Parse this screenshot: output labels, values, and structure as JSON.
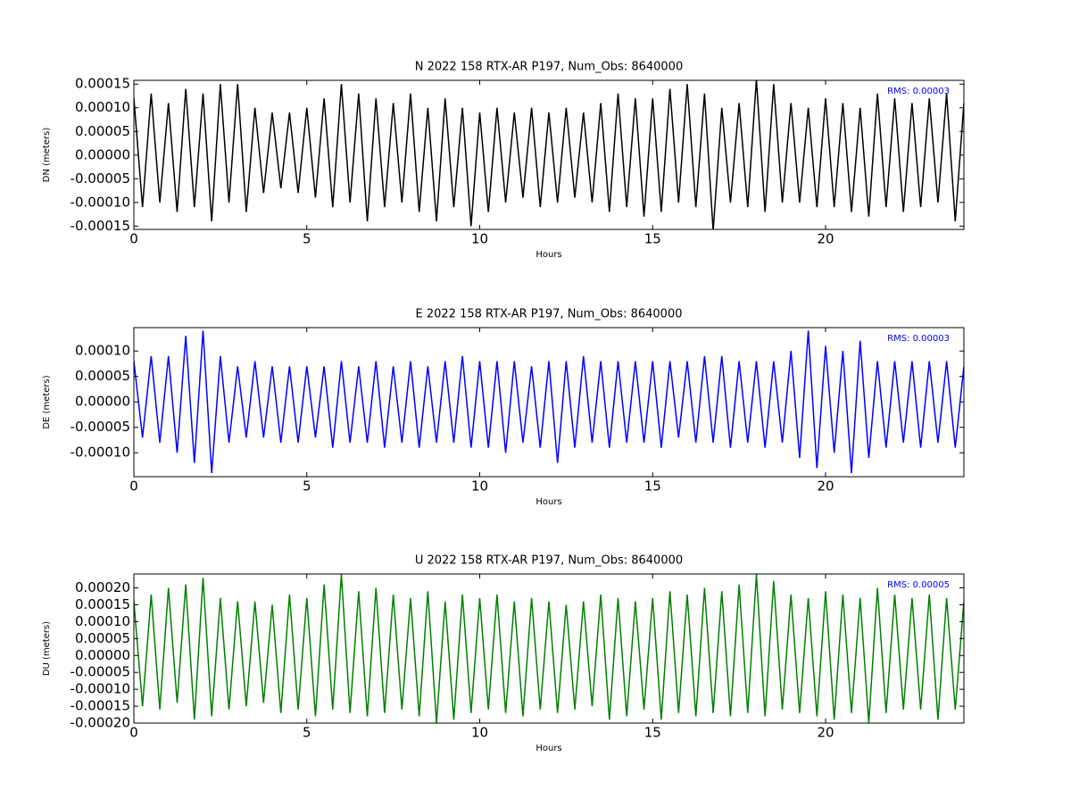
{
  "chart_data": [
    {
      "type": "line",
      "title": "N 2022 158 RTX-AR  P197, Num_Obs: 8640000",
      "ylabel": "DN (meters)",
      "xlabel": "Hours",
      "annotation": "RMS:  0.00003",
      "annotation_color": "#0000ff",
      "color": "#000000",
      "xlim": [
        0,
        24
      ],
      "xticks": [
        0,
        5,
        10,
        15,
        20
      ],
      "ylim": [
        -0.000157,
        0.000158
      ],
      "yticks": [
        {
          "value": -0.00015,
          "label": "-0.00015"
        },
        {
          "value": -0.0001,
          "label": "-0.00010"
        },
        {
          "value": -5e-05,
          "label": "-0.00005"
        },
        {
          "value": 0,
          "label": "0.00000"
        },
        {
          "value": 5e-05,
          "label": "0.00005"
        },
        {
          "value": 0.0001,
          "label": "0.00010"
        },
        {
          "value": 0.00015,
          "label": "0.00015"
        }
      ],
      "x": [
        0,
        0.25,
        0.5,
        0.75,
        1,
        1.25,
        1.5,
        1.75,
        2,
        2.25,
        2.5,
        2.75,
        3,
        3.25,
        3.5,
        3.75,
        4,
        4.25,
        4.5,
        4.75,
        5,
        5.25,
        5.5,
        5.75,
        6,
        6.25,
        6.5,
        6.75,
        7,
        7.25,
        7.5,
        7.75,
        8,
        8.25,
        8.5,
        8.75,
        9,
        9.25,
        9.5,
        9.75,
        10,
        10.25,
        10.5,
        10.75,
        11,
        11.25,
        11.5,
        11.75,
        12,
        12.25,
        12.5,
        12.75,
        13,
        13.25,
        13.5,
        13.75,
        14,
        14.25,
        14.5,
        14.75,
        15,
        15.25,
        15.5,
        15.75,
        16,
        16.25,
        16.5,
        16.75,
        17,
        17.25,
        17.5,
        17.75,
        18,
        18.25,
        18.5,
        18.75,
        19,
        19.25,
        19.5,
        19.75,
        20,
        20.25,
        20.5,
        20.75,
        21,
        21.25,
        21.5,
        21.75,
        22,
        22.25,
        22.5,
        22.75,
        23,
        23.25,
        23.5,
        23.75,
        24
      ],
      "values": [
        0.00012,
        -0.00011,
        0.00013,
        -0.0001,
        0.00011,
        -0.00012,
        0.00014,
        -0.00011,
        0.00013,
        -0.00014,
        0.00015,
        -0.0001,
        0.00015,
        -0.00012,
        0.0001,
        -8e-05,
        9e-05,
        -7e-05,
        9e-05,
        -8e-05,
        0.0001,
        -9e-05,
        0.00012,
        -0.00011,
        0.00015,
        -0.0001,
        0.00013,
        -0.00014,
        0.00012,
        -0.00011,
        0.00011,
        -0.0001,
        0.00013,
        -0.00012,
        0.0001,
        -0.00014,
        0.00012,
        -0.00011,
        0.0001,
        -0.00015,
        9e-05,
        -0.00012,
        0.0001,
        -0.0001,
        9e-05,
        -9e-05,
        0.0001,
        -0.00011,
        9e-05,
        -0.0001,
        0.0001,
        -9e-05,
        9e-05,
        -0.0001,
        0.00011,
        -0.00012,
        0.00013,
        -0.00011,
        0.00012,
        -0.00013,
        0.00012,
        -0.00012,
        0.00014,
        -0.0001,
        0.00015,
        -0.00011,
        0.00013,
        -0.00016,
        0.0001,
        -0.0001,
        0.00011,
        -0.00011,
        0.00016,
        -0.00012,
        0.00015,
        -0.0001,
        0.00011,
        -0.0001,
        0.0001,
        -0.00011,
        0.00012,
        -0.00011,
        0.00011,
        -0.00012,
        0.0001,
        -0.00013,
        0.00013,
        -0.00011,
        0.00012,
        -0.00012,
        0.00011,
        -0.00011,
        0.00012,
        -0.0001,
        0.00013,
        -0.00014,
        0.00011
      ]
    },
    {
      "type": "line",
      "title": "E 2022 158 RTX-AR  P197, Num_Obs: 8640000",
      "ylabel": "DE (meters)",
      "xlabel": "Hours",
      "annotation": "RMS:  0.00003",
      "annotation_color": "#0000ff",
      "color": "#0000ff",
      "xlim": [
        0,
        24
      ],
      "xticks": [
        0,
        5,
        10,
        15,
        20
      ],
      "ylim": [
        -0.000147,
        0.000146
      ],
      "yticks": [
        {
          "value": -0.0001,
          "label": "-0.00010"
        },
        {
          "value": -5e-05,
          "label": "-0.00005"
        },
        {
          "value": 0,
          "label": "0.00000"
        },
        {
          "value": 5e-05,
          "label": "0.00005"
        },
        {
          "value": 0.0001,
          "label": "0.00010"
        }
      ],
      "x": [
        0,
        0.25,
        0.5,
        0.75,
        1,
        1.25,
        1.5,
        1.75,
        2,
        2.25,
        2.5,
        2.75,
        3,
        3.25,
        3.5,
        3.75,
        4,
        4.25,
        4.5,
        4.75,
        5,
        5.25,
        5.5,
        5.75,
        6,
        6.25,
        6.5,
        6.75,
        7,
        7.25,
        7.5,
        7.75,
        8,
        8.25,
        8.5,
        8.75,
        9,
        9.25,
        9.5,
        9.75,
        10,
        10.25,
        10.5,
        10.75,
        11,
        11.25,
        11.5,
        11.75,
        12,
        12.25,
        12.5,
        12.75,
        13,
        13.25,
        13.5,
        13.75,
        14,
        14.25,
        14.5,
        14.75,
        15,
        15.25,
        15.5,
        15.75,
        16,
        16.25,
        16.5,
        16.75,
        17,
        17.25,
        17.5,
        17.75,
        18,
        18.25,
        18.5,
        18.75,
        19,
        19.25,
        19.5,
        19.75,
        20,
        20.25,
        20.5,
        20.75,
        21,
        21.25,
        21.5,
        21.75,
        22,
        22.25,
        22.5,
        22.75,
        23,
        23.25,
        23.5,
        23.75,
        24
      ],
      "values": [
        8e-05,
        -7e-05,
        9e-05,
        -8e-05,
        9e-05,
        -0.0001,
        0.00013,
        -0.00012,
        0.00014,
        -0.00014,
        9e-05,
        -8e-05,
        7e-05,
        -7e-05,
        8e-05,
        -7e-05,
        7e-05,
        -8e-05,
        7e-05,
        -8e-05,
        7e-05,
        -7e-05,
        7e-05,
        -9e-05,
        8e-05,
        -8e-05,
        7e-05,
        -8e-05,
        8e-05,
        -9e-05,
        7e-05,
        -8e-05,
        8e-05,
        -9e-05,
        7e-05,
        -8e-05,
        8e-05,
        -8e-05,
        9e-05,
        -9e-05,
        8e-05,
        -9e-05,
        8e-05,
        -0.0001,
        8e-05,
        -8e-05,
        7e-05,
        -9e-05,
        8e-05,
        -0.00012,
        8e-05,
        -9e-05,
        9e-05,
        -8e-05,
        8e-05,
        -9e-05,
        8e-05,
        -8e-05,
        8e-05,
        -8e-05,
        8e-05,
        -9e-05,
        8e-05,
        -7e-05,
        8e-05,
        -8e-05,
        9e-05,
        -8e-05,
        9e-05,
        -9e-05,
        8e-05,
        -8e-05,
        8e-05,
        -9e-05,
        8e-05,
        -8e-05,
        0.0001,
        -0.00011,
        0.00014,
        -0.00013,
        0.00011,
        -0.0001,
        0.0001,
        -0.00014,
        0.00012,
        -0.00011,
        8e-05,
        -9e-05,
        8e-05,
        -8e-05,
        8e-05,
        -9e-05,
        8e-05,
        -8e-05,
        8e-05,
        -9e-05,
        7e-05
      ]
    },
    {
      "type": "line",
      "title": "U 2022 158 RTX-AR  P197, Num_Obs: 8640000",
      "ylabel": "DU (meters)",
      "xlabel": "Hours",
      "annotation": "RMS:  0.00005",
      "annotation_color": "#0000ff",
      "color": "#008000",
      "xlim": [
        0,
        24
      ],
      "xticks": [
        0,
        5,
        10,
        15,
        20
      ],
      "ylim": [
        -0.0002,
        0.000241
      ],
      "yticks": [
        {
          "value": -0.0002,
          "label": "-0.00020"
        },
        {
          "value": -0.00015,
          "label": "-0.00015"
        },
        {
          "value": -0.0001,
          "label": "-0.00010"
        },
        {
          "value": -5e-05,
          "label": "-0.00005"
        },
        {
          "value": 0,
          "label": "0.00000"
        },
        {
          "value": 5e-05,
          "label": "0.00005"
        },
        {
          "value": 0.0001,
          "label": "0.00010"
        },
        {
          "value": 0.00015,
          "label": "0.00015"
        },
        {
          "value": 0.0002,
          "label": "0.00020"
        }
      ],
      "x": [
        0,
        0.25,
        0.5,
        0.75,
        1,
        1.25,
        1.5,
        1.75,
        2,
        2.25,
        2.5,
        2.75,
        3,
        3.25,
        3.5,
        3.75,
        4,
        4.25,
        4.5,
        4.75,
        5,
        5.25,
        5.5,
        5.75,
        6,
        6.25,
        6.5,
        6.75,
        7,
        7.25,
        7.5,
        7.75,
        8,
        8.25,
        8.5,
        8.75,
        9,
        9.25,
        9.5,
        9.75,
        10,
        10.25,
        10.5,
        10.75,
        11,
        11.25,
        11.5,
        11.75,
        12,
        12.25,
        12.5,
        12.75,
        13,
        13.25,
        13.5,
        13.75,
        14,
        14.25,
        14.5,
        14.75,
        15,
        15.25,
        15.5,
        15.75,
        16,
        16.25,
        16.5,
        16.75,
        17,
        17.25,
        17.5,
        17.75,
        18,
        18.25,
        18.5,
        18.75,
        19,
        19.25,
        19.5,
        19.75,
        20,
        20.25,
        20.5,
        20.75,
        21,
        21.25,
        21.5,
        21.75,
        22,
        22.25,
        22.5,
        22.75,
        23,
        23.25,
        23.5,
        23.75,
        24
      ],
      "values": [
        0.00016,
        -0.00015,
        0.00018,
        -0.00016,
        0.0002,
        -0.00014,
        0.00021,
        -0.00019,
        0.00023,
        -0.00018,
        0.00017,
        -0.00016,
        0.00016,
        -0.00015,
        0.00016,
        -0.00014,
        0.00015,
        -0.00017,
        0.00018,
        -0.00016,
        0.00017,
        -0.00018,
        0.00021,
        -0.00016,
        0.00024,
        -0.00017,
        0.00019,
        -0.00018,
        0.0002,
        -0.00017,
        0.00018,
        -0.00016,
        0.00017,
        -0.00018,
        0.00019,
        -0.0002,
        0.00016,
        -0.00019,
        0.00018,
        -0.00017,
        0.00017,
        -0.00016,
        0.00018,
        -0.00017,
        0.00016,
        -0.00018,
        0.00017,
        -0.00016,
        0.00016,
        -0.00017,
        0.00015,
        -0.00016,
        0.00016,
        -0.00015,
        0.00018,
        -0.00019,
        0.00017,
        -0.00018,
        0.00016,
        -0.00016,
        0.00017,
        -0.00019,
        0.00019,
        -0.00017,
        0.00018,
        -0.00018,
        0.0002,
        -0.00017,
        0.00019,
        -0.00018,
        0.00021,
        -0.00017,
        0.00024,
        -0.00018,
        0.00022,
        -0.00016,
        0.00018,
        -0.00017,
        0.00017,
        -0.00018,
        0.00019,
        -0.00019,
        0.00018,
        -0.00017,
        0.00017,
        -0.0002,
        0.0002,
        -0.00017,
        0.00018,
        -0.00016,
        0.00017,
        -0.00016,
        0.00018,
        -0.00019,
        0.00017,
        -0.00016,
        0.00016
      ]
    }
  ]
}
